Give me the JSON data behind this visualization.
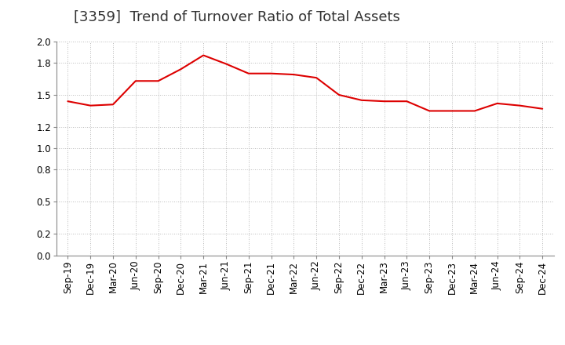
{
  "title": "[3359]  Trend of Turnover Ratio of Total Assets",
  "x_labels": [
    "Sep-19",
    "Dec-19",
    "Mar-20",
    "Jun-20",
    "Sep-20",
    "Dec-20",
    "Mar-21",
    "Jun-21",
    "Sep-21",
    "Dec-21",
    "Mar-22",
    "Jun-22",
    "Sep-22",
    "Dec-22",
    "Mar-23",
    "Jun-23",
    "Sep-23",
    "Dec-23",
    "Mar-24",
    "Jun-24",
    "Sep-24",
    "Dec-24"
  ],
  "values": [
    1.44,
    1.4,
    1.41,
    1.63,
    1.63,
    1.74,
    1.87,
    1.79,
    1.7,
    1.7,
    1.69,
    1.66,
    1.5,
    1.45,
    1.44,
    1.44,
    1.35,
    1.35,
    1.35,
    1.42,
    1.4,
    1.37
  ],
  "line_color": "#dd0000",
  "background_color": "#ffffff",
  "grid_color": "#bbbbbb",
  "ylim": [
    0.0,
    2.0
  ],
  "yticks": [
    0.0,
    0.2,
    0.5,
    0.8,
    1.0,
    1.2,
    1.5,
    1.8,
    2.0
  ],
  "title_fontsize": 13,
  "tick_fontsize": 8.5
}
